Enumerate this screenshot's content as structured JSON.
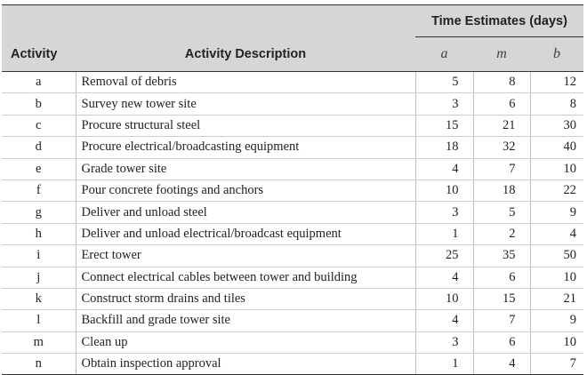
{
  "header": {
    "group_title": "Time Estimates (days)",
    "col_activity": "Activity",
    "col_description": "Activity Description",
    "col_a": "a",
    "col_m": "m",
    "col_b": "b"
  },
  "rows": [
    {
      "activity": "a",
      "description": "Removal of debris",
      "a": "5",
      "m": "8",
      "b": "12"
    },
    {
      "activity": "b",
      "description": "Survey new tower site",
      "a": "3",
      "m": "6",
      "b": "8"
    },
    {
      "activity": "c",
      "description": "Procure structural steel",
      "a": "15",
      "m": "21",
      "b": "30"
    },
    {
      "activity": "d",
      "description": "Procure electrical/broadcasting equipment",
      "a": "18",
      "m": "32",
      "b": "40"
    },
    {
      "activity": "e",
      "description": "Grade tower site",
      "a": "4",
      "m": "7",
      "b": "10"
    },
    {
      "activity": "f",
      "description": "Pour concrete footings and anchors",
      "a": "10",
      "m": "18",
      "b": "22"
    },
    {
      "activity": "g",
      "description": "Deliver and unload steel",
      "a": "3",
      "m": "5",
      "b": "9"
    },
    {
      "activity": "h",
      "description": "Deliver and unload electrical/broadcast equipment",
      "a": "1",
      "m": "2",
      "b": "4"
    },
    {
      "activity": "i",
      "description": "Erect tower",
      "a": "25",
      "m": "35",
      "b": "50"
    },
    {
      "activity": "j",
      "description": "Connect electrical cables between tower and building",
      "a": "4",
      "m": "6",
      "b": "10"
    },
    {
      "activity": "k",
      "description": "Construct storm drains and tiles",
      "a": "10",
      "m": "15",
      "b": "21"
    },
    {
      "activity": "l",
      "description": "Backfill and grade tower site",
      "a": "4",
      "m": "7",
      "b": "9"
    },
    {
      "activity": "m",
      "description": "Clean up",
      "a": "3",
      "m": "6",
      "b": "10"
    },
    {
      "activity": "n",
      "description": "Obtain inspection approval",
      "a": "1",
      "m": "4",
      "b": "7"
    }
  ]
}
